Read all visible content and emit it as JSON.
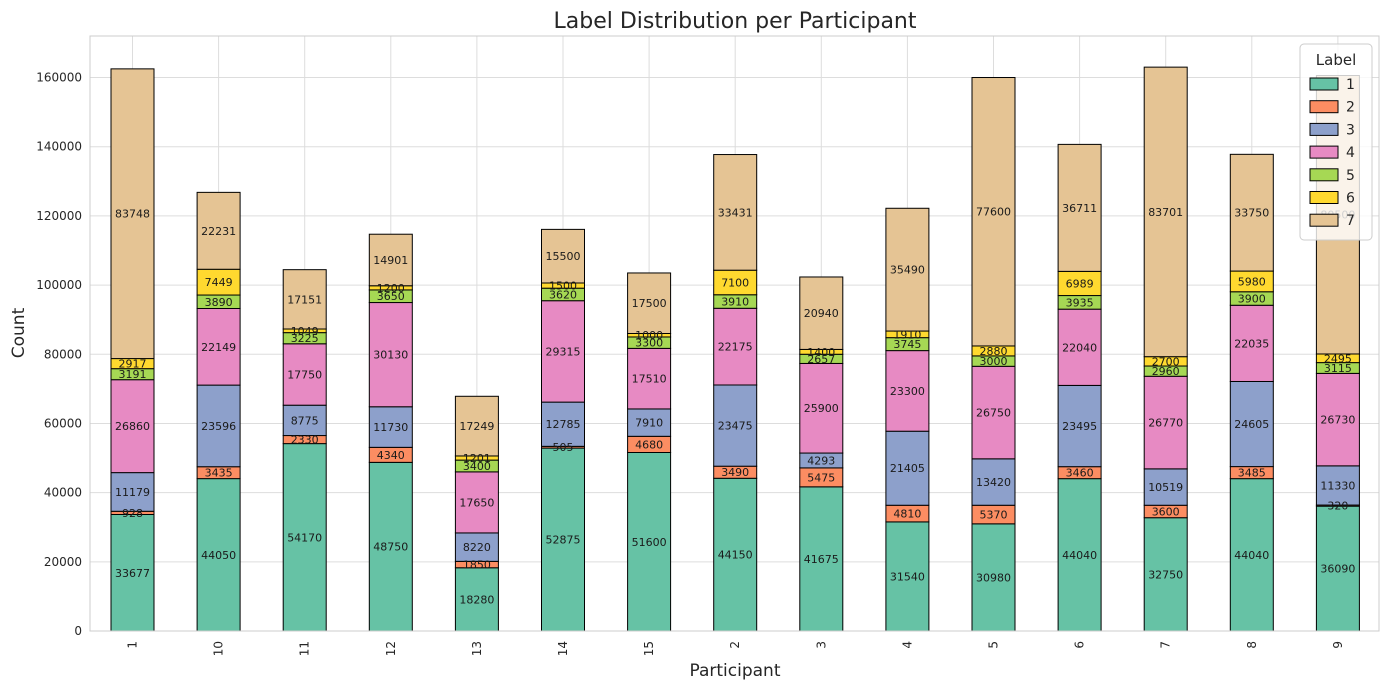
{
  "chart_data": {
    "type": "bar",
    "stacked": true,
    "title": "Label Distribution per Participant",
    "xlabel": "Participant",
    "ylabel": "Count",
    "ylim": [
      0,
      172000
    ],
    "yticks": [
      0,
      20000,
      40000,
      60000,
      80000,
      100000,
      120000,
      140000,
      160000
    ],
    "grid": true,
    "legend": {
      "title": "Label",
      "placement": "top-right"
    },
    "categories": [
      "1",
      "10",
      "11",
      "12",
      "13",
      "14",
      "15",
      "2",
      "3",
      "4",
      "5",
      "6",
      "7",
      "8",
      "9"
    ],
    "series": [
      {
        "name": "1",
        "color": "#66c2a5",
        "values": [
          33677,
          44050,
          54170,
          48750,
          18280,
          52875,
          51600,
          44150,
          41675,
          31540,
          30980,
          44040,
          32750,
          44040,
          36090
        ]
      },
      {
        "name": "2",
        "color": "#fc8d62",
        "values": [
          928,
          3435,
          2330,
          4340,
          1850,
          505,
          4680,
          3490,
          5475,
          4810,
          5370,
          3460,
          3600,
          3485,
          320
        ]
      },
      {
        "name": "3",
        "color": "#8da0cb",
        "values": [
          11179,
          23596,
          8775,
          11730,
          8220,
          12785,
          7910,
          23475,
          4293,
          21405,
          13420,
          23495,
          10519,
          24605,
          11330
        ]
      },
      {
        "name": "4",
        "color": "#e78ac3",
        "values": [
          26860,
          22149,
          17750,
          30130,
          17650,
          29315,
          17510,
          22175,
          25900,
          23300,
          26750,
          22040,
          26770,
          22035,
          26730
        ]
      },
      {
        "name": "5",
        "color": "#a6d854",
        "values": [
          3191,
          3890,
          3225,
          3650,
          3400,
          3620,
          3300,
          3910,
          2657,
          3745,
          3000,
          3935,
          2960,
          3900,
          3115
        ]
      },
      {
        "name": "6",
        "color": "#ffd92f",
        "values": [
          2917,
          7449,
          1049,
          1200,
          1201,
          1500,
          1000,
          7100,
          1400,
          1910,
          2880,
          6989,
          2700,
          5980,
          2495
        ]
      },
      {
        "name": "7",
        "color": "#e5c494",
        "values": [
          83748,
          22231,
          17151,
          14901,
          17249,
          15500,
          17500,
          33431,
          20940,
          35490,
          77600,
          36711,
          83701,
          33750,
          80500
        ]
      }
    ]
  }
}
